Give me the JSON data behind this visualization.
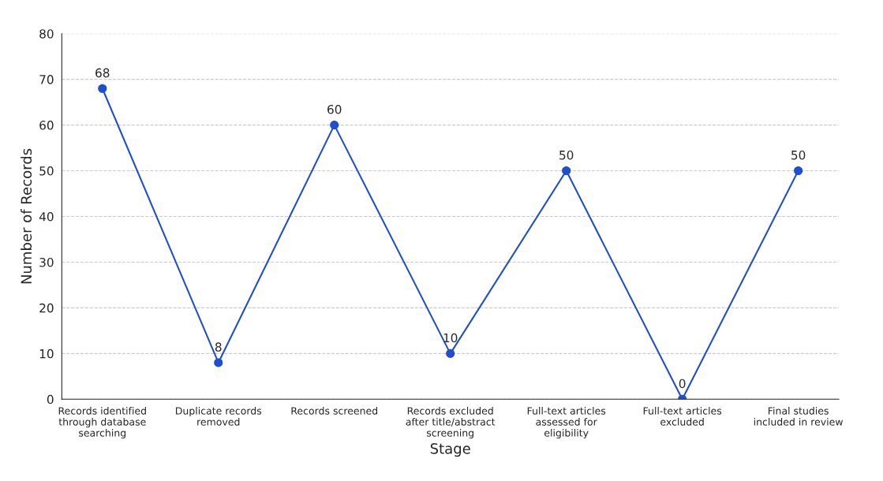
{
  "chart_data": {
    "type": "line",
    "xlabel": "Stage",
    "ylabel": "Number of Records",
    "categories": [
      "Records identified\nthrough database\nsearching",
      "Duplicate records\nremoved",
      "Records screened",
      "Records excluded\nafter title/abstract\nscreening",
      "Full-text articles\nassessed for\neligibility",
      "Full-text articles\nexcluded",
      "Final studies\nincluded in review"
    ],
    "series": [
      {
        "color": "#1f4fcc",
        "values": [
          68,
          8,
          60,
          10,
          50,
          0,
          50
        ]
      }
    ],
    "ylim": [
      0,
      80
    ],
    "yticks": [
      0,
      10,
      20,
      30,
      40,
      50,
      60,
      70,
      80
    ],
    "grid": "y",
    "marker": "circle",
    "line_style": "solid",
    "data_labels": true
  }
}
